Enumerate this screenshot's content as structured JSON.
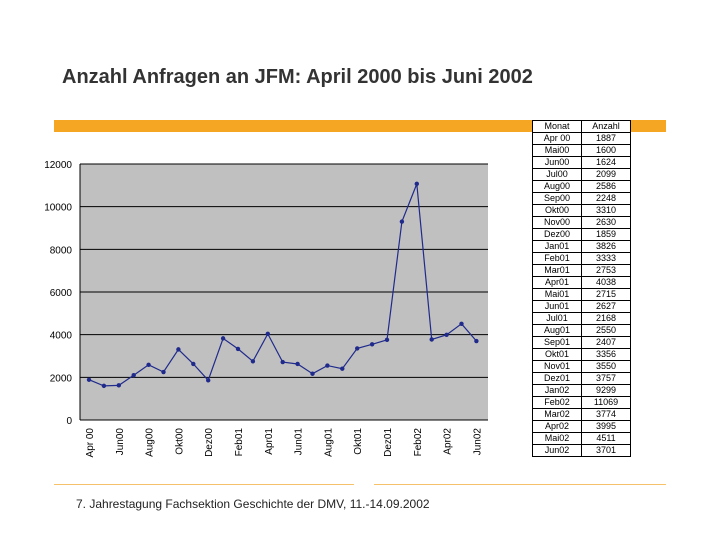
{
  "slide": {
    "title": "Anzahl Anfragen an JFM: April 2000 bis Juni 2002",
    "footer": "7. Jahrestagung Fachsektion Geschichte der DMV, 11.-14.09.2002",
    "accent_color": "#f5a623"
  },
  "table": {
    "headers": [
      "Monat",
      "Anzahl"
    ],
    "rows": [
      [
        "Apr 00",
        "1887"
      ],
      [
        "Mai00",
        "1600"
      ],
      [
        "Jun00",
        "1624"
      ],
      [
        "Jul00",
        "2099"
      ],
      [
        "Aug00",
        "2586"
      ],
      [
        "Sep00",
        "2248"
      ],
      [
        "Okt00",
        "3310"
      ],
      [
        "Nov00",
        "2630"
      ],
      [
        "Dez00",
        "1859"
      ],
      [
        "Jan01",
        "3826"
      ],
      [
        "Feb01",
        "3333"
      ],
      [
        "Mar01",
        "2753"
      ],
      [
        "Apr01",
        "4038"
      ],
      [
        "Mai01",
        "2715"
      ],
      [
        "Jun01",
        "2627"
      ],
      [
        "Jul01",
        "2168"
      ],
      [
        "Aug01",
        "2550"
      ],
      [
        "Sep01",
        "2407"
      ],
      [
        "Okt01",
        "3356"
      ],
      [
        "Nov01",
        "3550"
      ],
      [
        "Dez01",
        "3757"
      ],
      [
        "Jan02",
        "9299"
      ],
      [
        "Feb02",
        "11069"
      ],
      [
        "Mar02",
        "3774"
      ],
      [
        "Apr02",
        "3995"
      ],
      [
        "Mai02",
        "4511"
      ],
      [
        "Jun02",
        "3701"
      ]
    ]
  },
  "chart_data": {
    "type": "line",
    "title": "",
    "xlabel": "",
    "ylabel": "",
    "ylim": [
      0,
      12000
    ],
    "yticks": [
      0,
      2000,
      4000,
      6000,
      8000,
      10000,
      12000
    ],
    "grid": true,
    "x": [
      "Apr 00",
      "Mai00",
      "Jun00",
      "Jul00",
      "Aug00",
      "Sep00",
      "Okt00",
      "Nov00",
      "Dez00",
      "Jan01",
      "Feb01",
      "Mar01",
      "Apr01",
      "Mai01",
      "Jun01",
      "Jul01",
      "Aug01",
      "Sep01",
      "Okt01",
      "Nov01",
      "Dez01",
      "Jan02",
      "Feb02",
      "Mar02",
      "Apr02",
      "Mai02",
      "Jun02"
    ],
    "x_tick_labels": [
      "Apr 00",
      "Jun00",
      "Aug00",
      "Okt00",
      "Dez00",
      "Feb01",
      "Apr01",
      "Jun01",
      "Aug01",
      "Okt01",
      "Dez01",
      "Feb02",
      "Apr02",
      "Jun02"
    ],
    "series": [
      {
        "values": [
          1887,
          1600,
          1624,
          2099,
          2586,
          2248,
          3310,
          2630,
          1859,
          3826,
          3333,
          2753,
          4038,
          2715,
          2627,
          2168,
          2550,
          2407,
          3356,
          3550,
          3757,
          9299,
          11069,
          3774,
          3995,
          4511,
          3701
        ],
        "color": "#1f2a8c"
      }
    ],
    "plot_background": "#c0c0c0"
  }
}
